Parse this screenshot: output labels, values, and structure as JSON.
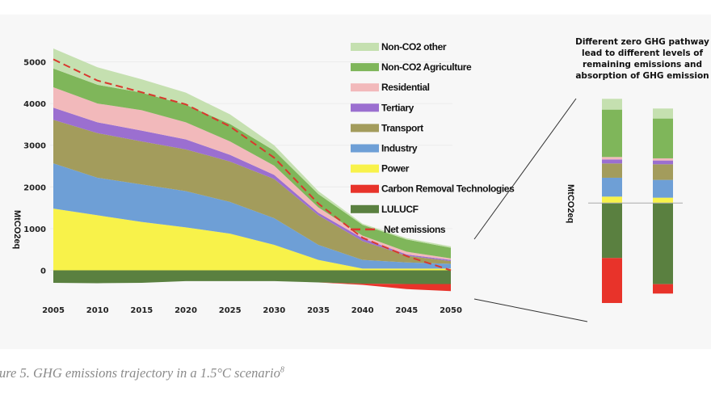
{
  "caption": {
    "text": "ure 5. GHG emissions trajectory in a 1.5°C scenario",
    "footnote": "8"
  },
  "chart_data": [
    {
      "type": "area",
      "stacked": true,
      "xlabel": "",
      "ylabel": "MtCO2eq",
      "x": [
        2005,
        2010,
        2015,
        2020,
        2025,
        2030,
        2035,
        2040,
        2045,
        2050
      ],
      "yticks": [
        0,
        1000,
        2000,
        3000,
        4000,
        5000
      ],
      "ylim": [
        -600,
        5400
      ],
      "grid": true,
      "legend_position": "top-right",
      "series": [
        {
          "name": "Non-CO2 other",
          "color": "#c5e0b0",
          "values": [
            480,
            420,
            320,
            290,
            230,
            130,
            70,
            30,
            30,
            35
          ]
        },
        {
          "name": "Non-CO2 Agriculture",
          "color": "#7fb65a",
          "values": [
            450,
            450,
            420,
            420,
            420,
            360,
            320,
            260,
            295,
            255
          ]
        },
        {
          "name": "Residential",
          "color": "#f2b9bb",
          "values": [
            490,
            450,
            490,
            410,
            320,
            220,
            130,
            60,
            65,
            35
          ]
        },
        {
          "name": "Tertiary",
          "color": "#9b6fd0",
          "values": [
            290,
            260,
            260,
            240,
            160,
            100,
            60,
            70,
            30,
            30
          ]
        },
        {
          "name": "Transport",
          "color": "#a39c5c",
          "values": [
            1045,
            1070,
            1030,
            1000,
            970,
            940,
            710,
            450,
            160,
            65
          ]
        },
        {
          "name": "Industry",
          "color": "#6e9fd6",
          "values": [
            1085,
            900,
            900,
            870,
            760,
            640,
            360,
            210,
            150,
            115
          ]
        },
        {
          "name": "Power",
          "color": "#f8f24a",
          "values": [
            1480,
            1320,
            1160,
            1030,
            880,
            610,
            250,
            40,
            40,
            40
          ]
        },
        {
          "name": "Carbon Removal Technologies",
          "color": "#e8332a",
          "values": [
            0,
            0,
            0,
            0,
            0,
            0,
            0,
            -30,
            -120,
            -170
          ]
        },
        {
          "name": "LULUCF",
          "color": "#5a8040",
          "values": [
            -300,
            -310,
            -300,
            -260,
            -260,
            -260,
            -290,
            -320,
            -330,
            -330
          ]
        }
      ],
      "line": {
        "name": "Net emissions",
        "color": "#d9382e",
        "style": "dashed",
        "values": [
          5060,
          4550,
          4270,
          3980,
          3450,
          2700,
          1600,
          780,
          340,
          0
        ]
      }
    },
    {
      "type": "bar",
      "stacked": true,
      "title": "Different zero GHG pathway lead to different levels of remaining emissions and absorption of GHG emission",
      "title_lines": [
        "Different zero GHG pathway",
        "lead to different levels of",
        "remaining emissions and",
        "absorption of GHG emission"
      ],
      "ylabel": "MtCO2eq",
      "note": "relative magnitudes, no numeric axis shown",
      "bars": [
        {
          "segments": {
            "Power": 24,
            "Industry": 70,
            "Transport": 53,
            "Tertiary": 15,
            "Residential": 9,
            "Non-CO2 Agriculture": 176,
            "Non-CO2 other": 40,
            "LULUCF": -204,
            "Carbon Removal Technologies": -167
          }
        },
        {
          "segments": {
            "Power": 20,
            "Industry": 66,
            "Transport": 58,
            "Tertiary": 14,
            "Residential": 8,
            "Non-CO2 Agriculture": 148,
            "Non-CO2 other": 37,
            "LULUCF": -301,
            "Carbon Removal Technologies": -35
          }
        }
      ]
    }
  ]
}
